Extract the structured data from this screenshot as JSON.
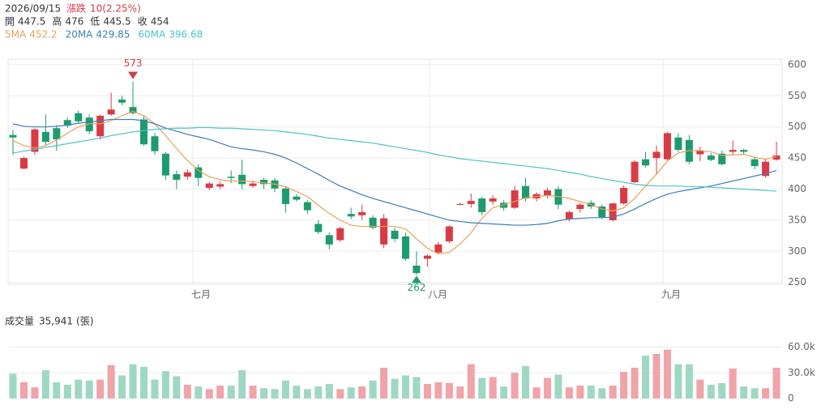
{
  "header": {
    "date": "2026/09/15",
    "change_label": "漲跌",
    "change": "10(2.25%)",
    "ohlc_labels": [
      "開",
      "高",
      "低",
      "收"
    ]
  },
  "chart_data": [
    {
      "type": "candlestick",
      "up_color": "#d93a44",
      "down_color": "#1c9b6e",
      "ylim": [
        247,
        609
      ],
      "yticks": [
        250,
        300,
        350,
        400,
        450,
        500,
        550,
        600
      ],
      "grid": true,
      "xticks": [
        {
          "value": 16.5,
          "label": "七月"
        },
        {
          "value": 38.2,
          "label": "八月"
        },
        {
          "value": 59.6,
          "label": "九月"
        }
      ],
      "candles": [
        {
          "open": 487,
          "high": 495,
          "low": 455,
          "close": 483
        },
        {
          "open": 433,
          "high": 452,
          "low": 432,
          "close": 450
        },
        {
          "open": 460,
          "high": 498,
          "low": 455,
          "close": 496
        },
        {
          "open": 492,
          "high": 520,
          "low": 470,
          "close": 476
        },
        {
          "open": 498,
          "high": 503,
          "low": 462,
          "close": 480
        },
        {
          "open": 511,
          "high": 515,
          "low": 498,
          "close": 502
        },
        {
          "open": 522,
          "high": 526,
          "low": 505,
          "close": 509
        },
        {
          "open": 515,
          "high": 520,
          "low": 488,
          "close": 493
        },
        {
          "open": 485,
          "high": 520,
          "low": 480,
          "close": 518
        },
        {
          "open": 520,
          "high": 555,
          "low": 518,
          "close": 528
        },
        {
          "open": 544,
          "high": 550,
          "low": 535,
          "close": 539
        },
        {
          "open": 532,
          "high": 573,
          "low": 520,
          "close": 522
        },
        {
          "open": 512,
          "high": 518,
          "low": 470,
          "close": 472
        },
        {
          "open": 485,
          "high": 490,
          "low": 455,
          "close": 461
        },
        {
          "open": 457,
          "high": 460,
          "low": 415,
          "close": 422
        },
        {
          "open": 424,
          "high": 430,
          "low": 400,
          "close": 415
        },
        {
          "open": 420,
          "high": 432,
          "low": 415,
          "close": 427
        },
        {
          "open": 435,
          "high": 440,
          "low": 405,
          "close": 418
        },
        {
          "open": 402,
          "high": 412,
          "low": 398,
          "close": 409
        },
        {
          "open": 404,
          "high": 412,
          "low": 400,
          "close": 408
        },
        {
          "open": 420,
          "high": 430,
          "low": 410,
          "close": 418
        },
        {
          "open": 423,
          "high": 447,
          "low": 400,
          "close": 408
        },
        {
          "open": 405,
          "high": 414,
          "low": 402,
          "close": 409
        },
        {
          "open": 415,
          "high": 418,
          "low": 400,
          "close": 408
        },
        {
          "open": 414,
          "high": 418,
          "low": 395,
          "close": 401
        },
        {
          "open": 401,
          "high": 405,
          "low": 362,
          "close": 376
        },
        {
          "open": 388,
          "high": 392,
          "low": 380,
          "close": 383
        },
        {
          "open": 379,
          "high": 382,
          "low": 360,
          "close": 366
        },
        {
          "open": 344,
          "high": 350,
          "low": 328,
          "close": 331
        },
        {
          "open": 326,
          "high": 330,
          "low": 303,
          "close": 311
        },
        {
          "open": 318,
          "high": 340,
          "low": 315,
          "close": 337
        },
        {
          "open": 360,
          "high": 370,
          "low": 352,
          "close": 356
        },
        {
          "open": 358,
          "high": 375,
          "low": 350,
          "close": 363
        },
        {
          "open": 354,
          "high": 358,
          "low": 335,
          "close": 338
        },
        {
          "open": 311,
          "high": 360,
          "low": 305,
          "close": 353
        },
        {
          "open": 333,
          "high": 338,
          "low": 315,
          "close": 320
        },
        {
          "open": 324,
          "high": 330,
          "low": 285,
          "close": 288
        },
        {
          "open": 277,
          "high": 300,
          "low": 262,
          "close": 265
        },
        {
          "open": 288,
          "high": 295,
          "low": 275,
          "close": 293
        },
        {
          "open": 298,
          "high": 315,
          "low": 295,
          "close": 311
        },
        {
          "open": 316,
          "high": 342,
          "low": 313,
          "close": 340
        },
        {
          "open": 375,
          "high": 378,
          "low": 374,
          "close": 376
        },
        {
          "open": 376,
          "high": 393,
          "low": 370,
          "close": 381
        },
        {
          "open": 385,
          "high": 388,
          "low": 358,
          "close": 363
        },
        {
          "open": 380,
          "high": 390,
          "low": 375,
          "close": 385
        },
        {
          "open": 378,
          "high": 382,
          "low": 365,
          "close": 370
        },
        {
          "open": 370,
          "high": 405,
          "low": 368,
          "close": 398
        },
        {
          "open": 405,
          "high": 418,
          "low": 380,
          "close": 385
        },
        {
          "open": 385,
          "high": 395,
          "low": 380,
          "close": 392
        },
        {
          "open": 390,
          "high": 402,
          "low": 385,
          "close": 398
        },
        {
          "open": 400,
          "high": 405,
          "low": 368,
          "close": 375
        },
        {
          "open": 352,
          "high": 366,
          "low": 348,
          "close": 363
        },
        {
          "open": 368,
          "high": 378,
          "low": 362,
          "close": 375
        },
        {
          "open": 378,
          "high": 382,
          "low": 368,
          "close": 372
        },
        {
          "open": 372,
          "high": 375,
          "low": 352,
          "close": 355
        },
        {
          "open": 350,
          "high": 378,
          "low": 348,
          "close": 377
        },
        {
          "open": 377,
          "high": 406,
          "low": 375,
          "close": 402
        },
        {
          "open": 411,
          "high": 446,
          "low": 410,
          "close": 444
        },
        {
          "open": 448,
          "high": 460,
          "low": 435,
          "close": 438
        },
        {
          "open": 450,
          "high": 470,
          "low": 425,
          "close": 460
        },
        {
          "open": 448,
          "high": 492,
          "low": 446,
          "close": 490
        },
        {
          "open": 483,
          "high": 490,
          "low": 460,
          "close": 463
        },
        {
          "open": 479,
          "high": 487,
          "low": 440,
          "close": 444
        },
        {
          "open": 456,
          "high": 468,
          "low": 445,
          "close": 462
        },
        {
          "open": 454,
          "high": 458,
          "low": 445,
          "close": 447
        },
        {
          "open": 457,
          "high": 462,
          "low": 438,
          "close": 440
        },
        {
          "open": 460,
          "high": 478,
          "low": 455,
          "close": 463
        },
        {
          "open": 463,
          "high": 465,
          "low": 455,
          "close": 460
        },
        {
          "open": 448,
          "high": 452,
          "low": 432,
          "close": 437
        },
        {
          "open": 421,
          "high": 448,
          "low": 418,
          "close": 444
        },
        {
          "open": 447.5,
          "high": 476,
          "low": 445.5,
          "close": 454
        }
      ],
      "series": [
        {
          "name": "5MA",
          "color": "#e8a25a",
          "values": [
            478,
            470,
            466,
            470,
            479,
            490,
            500,
            505,
            505,
            510,
            518,
            525,
            518,
            505,
            486,
            465,
            446,
            430,
            420,
            415,
            413,
            413,
            412,
            410,
            408,
            404,
            396,
            388,
            374,
            361,
            350,
            342,
            340,
            340,
            340,
            340,
            336,
            320,
            305,
            296,
            298,
            312,
            330,
            353,
            370,
            375,
            380,
            386,
            388,
            390,
            388,
            385,
            380,
            375,
            368,
            365,
            370,
            385,
            405,
            424,
            445,
            458,
            462,
            462,
            460,
            454,
            455,
            456,
            451,
            448,
            452.2
          ]
        },
        {
          "name": "20MA",
          "color": "#3b7fb8",
          "values": [
            505,
            501,
            500,
            500,
            501,
            503,
            506,
            508,
            510,
            512,
            512,
            512,
            510,
            505,
            498,
            493,
            488,
            484,
            480,
            474,
            468,
            465,
            463,
            460,
            456,
            450,
            442,
            433,
            424,
            414,
            405,
            398,
            391,
            385,
            380,
            375,
            370,
            365,
            360,
            355,
            350,
            348,
            346,
            345,
            344,
            343,
            342,
            342,
            343,
            345,
            349,
            352,
            353,
            354,
            354,
            355,
            360,
            368,
            377,
            385,
            392,
            396,
            399,
            402,
            405,
            409,
            413,
            417,
            421,
            425,
            429.85
          ]
        },
        {
          "name": "60MA",
          "color": "#4cc3c9",
          "values": [
            458,
            461,
            464,
            467,
            470,
            473,
            476,
            479,
            482,
            486,
            489,
            492,
            494,
            496,
            497,
            498,
            498,
            499,
            499,
            498,
            498,
            497,
            496,
            495,
            494,
            492,
            490,
            488,
            485,
            482,
            480,
            478,
            476,
            474,
            471,
            468,
            465,
            462,
            459,
            455,
            452,
            449,
            447,
            445,
            443,
            441,
            439,
            437,
            435,
            433,
            430,
            427,
            424,
            420,
            417,
            414,
            411,
            408,
            406,
            405,
            405,
            405,
            404,
            404,
            403,
            402,
            401,
            400,
            399,
            398,
            396.68
          ]
        }
      ]
    },
    {
      "type": "bar",
      "title": "成交量",
      "unit": "(張)",
      "up_color": "#f0a3a8",
      "down_color": "#9fd8c2",
      "ylim": [
        0,
        70000
      ],
      "yticks": [
        0,
        {
          "value": 30000,
          "label": "30.0k"
        },
        {
          "value": 60000,
          "label": "60.0k"
        }
      ],
      "values": [
        29000,
        19000,
        13000,
        33000,
        19000,
        16000,
        22000,
        21000,
        22000,
        39000,
        27000,
        40000,
        37000,
        22000,
        32000,
        26000,
        16000,
        14000,
        11000,
        15000,
        15000,
        33000,
        15000,
        12000,
        11000,
        21000,
        15000,
        11000,
        14000,
        17000,
        11000,
        13000,
        14000,
        21000,
        36000,
        23000,
        27000,
        25000,
        17000,
        19000,
        18000,
        14000,
        40000,
        24000,
        25000,
        14000,
        30000,
        38000,
        13000,
        24000,
        28000,
        13000,
        15000,
        15000,
        12000,
        15000,
        31000,
        36000,
        50000,
        52000,
        57000,
        40000,
        40000,
        22000,
        16000,
        18000,
        35000,
        14000,
        12000,
        12000,
        35941
      ],
      "value_labels": [
        null,
        null,
        null,
        null,
        null,
        null,
        null,
        null,
        null,
        null,
        null,
        null,
        null,
        null,
        null,
        null,
        null,
        null,
        null,
        null,
        null,
        null,
        null,
        null,
        null,
        null,
        null,
        null,
        null,
        null,
        null,
        null,
        null,
        null,
        null,
        null,
        null,
        null,
        null,
        null,
        null,
        null,
        null,
        null,
        null,
        null,
        null,
        null,
        null,
        null,
        null,
        null,
        null,
        null,
        null,
        null,
        null,
        null,
        null,
        null,
        null,
        null,
        null,
        null,
        null,
        null,
        null,
        null,
        null,
        null,
        "35,941"
      ]
    }
  ]
}
